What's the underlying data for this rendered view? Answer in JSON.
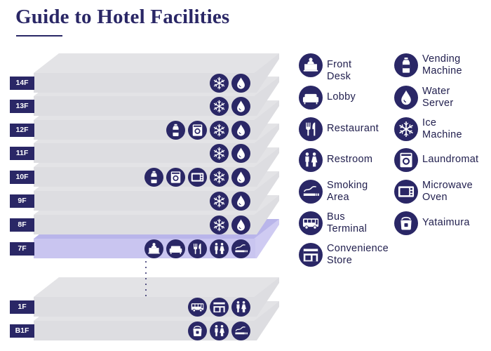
{
  "title": "Guide to Hotel Facilities",
  "colors": {
    "navy": "#2a2766",
    "slab": "#e3e3e6",
    "slab_top": "#f1f1f3",
    "highlight": "#b9b5ea"
  },
  "floors": [
    {
      "label": "14F",
      "icons": [
        "ice-icon",
        "water-icon"
      ]
    },
    {
      "label": "13F",
      "icons": [
        "ice-icon",
        "water-icon"
      ]
    },
    {
      "label": "12F",
      "icons": [
        "vending-icon",
        "laundromat-icon",
        "ice-icon",
        "water-icon"
      ]
    },
    {
      "label": "11F",
      "icons": [
        "ice-icon",
        "water-icon"
      ]
    },
    {
      "label": "10F",
      "icons": [
        "vending-icon",
        "laundromat-icon",
        "microwave-icon",
        "ice-icon",
        "water-icon"
      ]
    },
    {
      "label": "9F",
      "icons": [
        "ice-icon",
        "water-icon"
      ]
    },
    {
      "label": "8F",
      "icons": [
        "ice-icon",
        "water-icon"
      ]
    },
    {
      "label": "7F",
      "highlight": true,
      "icons": [
        "front-desk-icon",
        "lobby-icon",
        "restaurant-icon",
        "restroom-icon",
        "smoking-icon"
      ]
    },
    {
      "label": "1F",
      "icons": [
        "bus-icon",
        "store-icon",
        "restroom-icon"
      ]
    },
    {
      "label": "B1F",
      "icons": [
        "yataimura-icon",
        "restroom-icon",
        "smoking-icon"
      ]
    }
  ],
  "legend": [
    {
      "icon": "front-desk-icon",
      "label": "Front Desk"
    },
    {
      "icon": "lobby-icon",
      "label": "Lobby"
    },
    {
      "icon": "restaurant-icon",
      "label": "Restaurant"
    },
    {
      "icon": "restroom-icon",
      "label": "Restroom"
    },
    {
      "icon": "smoking-icon",
      "label": "Smoking\nArea"
    },
    {
      "icon": "bus-icon",
      "label": "Bus\nTerminal"
    },
    {
      "icon": "store-icon",
      "label": "Convenience\nStore"
    },
    {
      "icon": "vending-icon",
      "label": "Vending\nMachine"
    },
    {
      "icon": "water-icon",
      "label": "Water\nServer"
    },
    {
      "icon": "ice-icon",
      "label": "Ice\nMachine"
    },
    {
      "icon": "laundromat-icon",
      "label": "Laundromat"
    },
    {
      "icon": "microwave-icon",
      "label": "Microwave\nOven"
    },
    {
      "icon": "yataimura-icon",
      "label": "Yataimura"
    }
  ]
}
